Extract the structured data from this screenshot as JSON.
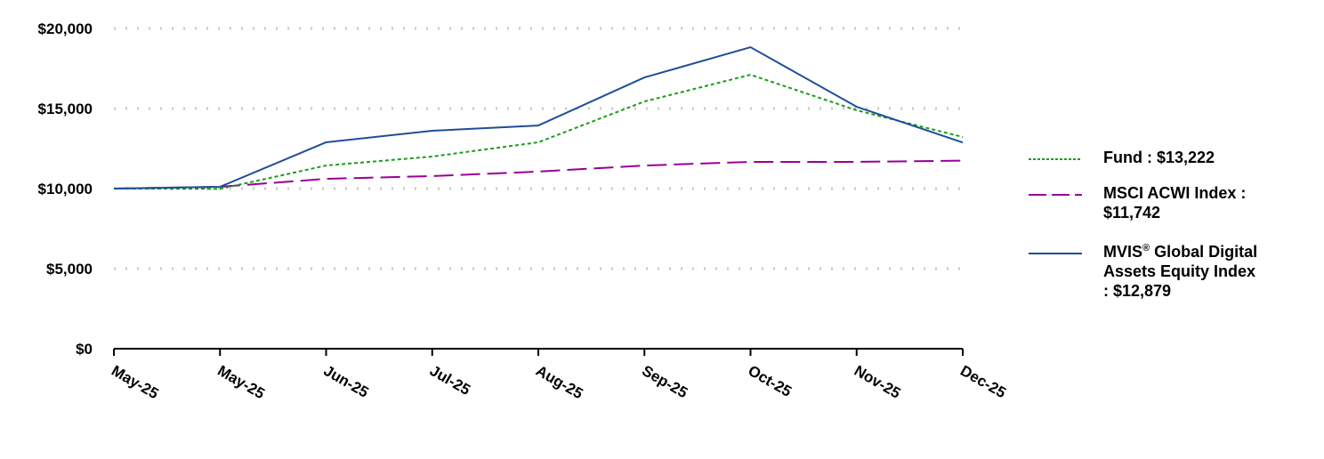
{
  "chart_data": {
    "type": "line",
    "title": "",
    "xlabel": "",
    "ylabel": "",
    "categories": [
      "May-25",
      "May-25",
      "Jun-25",
      "Jul-25",
      "Aug-25",
      "Sep-25",
      "Oct-25",
      "Nov-25",
      "Dec-25"
    ],
    "ylim": [
      0,
      20000
    ],
    "yticks": [
      0,
      5000,
      10000,
      15000,
      20000
    ],
    "ytick_labels": [
      "$0",
      "$5,000",
      "$10,000",
      "$15,000",
      "$20,000"
    ],
    "grid": "horizontal dotted",
    "legend_position": "right",
    "series": [
      {
        "name": "Fund",
        "legend_label": "Fund : $13,222",
        "color": "#1a9e1a",
        "style": "dotted",
        "values": [
          10000,
          9980,
          11440,
          12000,
          12890,
          15440,
          17110,
          14890,
          13222
        ]
      },
      {
        "name": "MSCI ACWI Index",
        "legend_label": "MSCI ACWI Index : $11,742",
        "color": "#990099",
        "style": "dashed",
        "values": [
          10000,
          10110,
          10610,
          10780,
          11060,
          11440,
          11670,
          11670,
          11742
        ]
      },
      {
        "name": "MVIS® Global Digital Assets Equity Index",
        "legend_label": "MVIS® Global Digital Assets Equity Index : $12,879",
        "color": "#1f4e99",
        "style": "solid",
        "values": [
          10000,
          10110,
          12890,
          13610,
          13940,
          16940,
          18830,
          15110,
          12879
        ]
      }
    ]
  },
  "legend": {
    "items": [
      {
        "label": "Fund : $13,222",
        "sup": "",
        "rest": ""
      },
      {
        "label": "MSCI ACWI Index : $11,742",
        "sup": "",
        "rest": ""
      },
      {
        "label": "MVIS",
        "sup": "®",
        "rest": " Global Digital Assets Equity Index : $12,879"
      }
    ]
  }
}
